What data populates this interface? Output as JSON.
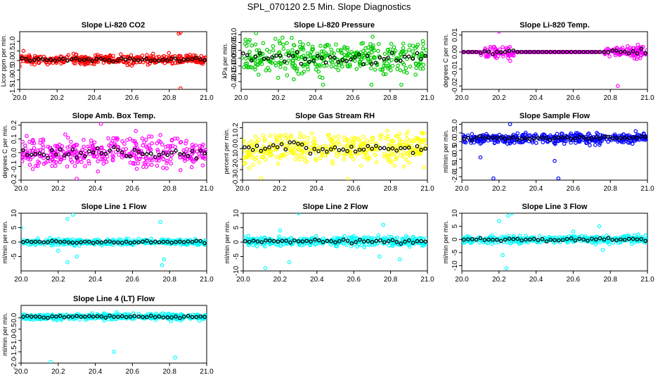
{
  "title": "SPL_070120  2.5 Min. Slope Diagnostics",
  "colors": {
    "red": "#ff0000",
    "green": "#00cc00",
    "magenta": "#ff00ff",
    "yellow": "#ffff00",
    "blue": "#0000ff",
    "cyan": "#00ffff",
    "black": "#000000"
  },
  "chart_data": [
    {
      "type": "scatter",
      "title": "Slope Li-820 CO2",
      "ylabel": "Licor ppm per min.",
      "xlim": [
        20.0,
        21.0
      ],
      "ylim": [
        -1.5,
        1.5
      ],
      "xticks": [
        "20.0",
        "20.2",
        "20.4",
        "20.6",
        "20.8",
        "21.0"
      ],
      "yticks": [
        "-1.5",
        "-1.0",
        "-0.5",
        "0.0",
        "0.5",
        "1.0"
      ],
      "color": "#ff0000",
      "band": [
        -0.3,
        0.4
      ],
      "outliers": [
        [
          20.85,
          1.4
        ],
        [
          20.86,
          1.45
        ],
        [
          20.86,
          -1.45
        ],
        [
          20.0,
          -0.3
        ],
        [
          20.02,
          0.5
        ]
      ]
    },
    {
      "type": "scatter",
      "title": "Slope Li-820 Pressure",
      "ylabel": "kPa per min.",
      "xlim": [
        20.0,
        21.0
      ],
      "ylim": [
        -0.25,
        0.12
      ],
      "xticks": [
        "20.0",
        "20.2",
        "20.4",
        "20.6",
        "20.8",
        "21.0"
      ],
      "yticks": [
        "-0.20",
        "-0.15",
        "-0.10",
        "-0.05",
        "0.00",
        "0.05",
        "0.10"
      ],
      "color": "#00cc00",
      "band": [
        -0.2,
        0.1
      ],
      "outliers": [
        [
          20.44,
          -0.22
        ],
        [
          20.7,
          -0.22
        ],
        [
          20.86,
          -0.22
        ],
        [
          20.08,
          0.11
        ]
      ]
    },
    {
      "type": "scatter",
      "title": "Slope Li-820 Temp.",
      "ylabel": "degrees C per min.",
      "xlim": [
        20.0,
        21.0
      ],
      "ylim": [
        -0.022,
        0.012
      ],
      "xticks": [
        "20.0",
        "20.2",
        "20.4",
        "20.6",
        "20.8",
        "21.0"
      ],
      "yticks": [
        "-0.02",
        "-0.01",
        "0.00",
        "0.01"
      ],
      "color": "#ff00ff",
      "band": [
        -0.005,
        0.005
      ],
      "activeRanges": [
        [
          20.1,
          20.28
        ],
        [
          20.77,
          21.0
        ]
      ],
      "outliers": [
        [
          20.2,
          0.012
        ],
        [
          20.84,
          -0.02
        ]
      ]
    },
    {
      "type": "scatter",
      "title": "Slope Amb. Box Temp.",
      "ylabel": "degrees C per min.",
      "xlim": [
        20.0,
        21.0
      ],
      "ylim": [
        -0.2,
        0.22
      ],
      "xticks": [
        "20.0",
        "20.2",
        "20.4",
        "20.6",
        "20.8",
        "21.0"
      ],
      "yticks": [
        "-0.2",
        "-0.1",
        "0.0",
        "0.1",
        "0.2"
      ],
      "color": "#ff00ff",
      "band": [
        -0.15,
        0.15
      ],
      "outliers": [
        [
          20.43,
          0.21
        ],
        [
          20.3,
          -0.19
        ]
      ]
    },
    {
      "type": "scatter",
      "title": "Slope Gas Stream RH",
      "ylabel": "percent per min.",
      "xlim": [
        20.0,
        21.0
      ],
      "ylim": [
        -0.3,
        0.25
      ],
      "xticks": [
        "20.0",
        "20.2",
        "20.4",
        "20.6",
        "20.8",
        "21.0"
      ],
      "yticks": [
        "-0.3",
        "-0.2",
        "-0.1",
        "0.0",
        "0.1",
        "0.2"
      ],
      "color": "#ffff00",
      "band": [
        -0.2,
        0.2
      ],
      "outliers": [
        [
          20.1,
          -0.28
        ],
        [
          20.57,
          -0.29
        ]
      ]
    },
    {
      "type": "scatter",
      "title": "Slope Sample Flow",
      "ylabel": "ml/min per min.",
      "xlim": [
        20.0,
        21.0
      ],
      "ylim": [
        -2.2,
        1.1
      ],
      "xticks": [
        "20.0",
        "20.2",
        "20.4",
        "20.6",
        "20.8",
        "21.0"
      ],
      "yticks": [
        "-2.0",
        "-1.5",
        "-1.0",
        "-0.5",
        "0.0",
        "0.5",
        "1.0"
      ],
      "color": "#0000ff",
      "band": [
        -0.2,
        0.6
      ],
      "outliers": [
        [
          20.17,
          -2.1
        ],
        [
          20.52,
          -2.1
        ],
        [
          20.26,
          1.0
        ],
        [
          20.5,
          -1.1
        ],
        [
          20.1,
          -0.9
        ]
      ]
    },
    {
      "type": "scatter",
      "title": "Slope Line 1 Flow",
      "ylabel": "ml/min per min.",
      "xlim": [
        20.0,
        21.0
      ],
      "ylim": [
        -10,
        10
      ],
      "xticks": [
        "20.0",
        "20.2",
        "20.4",
        "20.6",
        "20.8",
        "21.0"
      ],
      "yticks": [
        "-5",
        "0",
        "5",
        "10"
      ],
      "color": "#00ffff",
      "band": [
        -1.5,
        1.5
      ],
      "outliers": [
        [
          20.25,
          8
        ],
        [
          20.28,
          9.5
        ],
        [
          20.75,
          7
        ],
        [
          20.77,
          -6
        ],
        [
          20.76,
          -8
        ],
        [
          20.25,
          -7
        ],
        [
          20.3,
          -5
        ],
        [
          20.0,
          5
        ],
        [
          20.2,
          -3
        ]
      ]
    },
    {
      "type": "scatter",
      "title": "Slope Line 2 Flow",
      "ylabel": "ml/min per min.",
      "xlim": [
        20.0,
        21.0
      ],
      "ylim": [
        -10,
        10
      ],
      "xticks": [
        "20.0",
        "20.2",
        "20.4",
        "20.6",
        "20.8",
        "21.0"
      ],
      "yticks": [
        "-10",
        "-5",
        "0",
        "5",
        "10"
      ],
      "color": "#00ffff",
      "band": [
        -2,
        2.5
      ],
      "outliers": [
        [
          20.3,
          10
        ],
        [
          20.12,
          -9
        ],
        [
          20.25,
          -7
        ],
        [
          20.2,
          4
        ],
        [
          20.76,
          6
        ],
        [
          20.74,
          -5
        ],
        [
          20.85,
          -6
        ]
      ]
    },
    {
      "type": "scatter",
      "title": "Slope Line 3 Flow",
      "ylabel": "ml/min per min.",
      "xlim": [
        20.0,
        21.0
      ],
      "ylim": [
        -12,
        10
      ],
      "xticks": [
        "20.0",
        "20.2",
        "20.4",
        "20.6",
        "20.8",
        "21.0"
      ],
      "yticks": [
        "-10",
        "-5",
        "0",
        "5",
        "10"
      ],
      "color": "#00ffff",
      "band": [
        -2,
        2
      ],
      "outliers": [
        [
          20.25,
          9
        ],
        [
          20.27,
          10
        ],
        [
          20.24,
          -11
        ],
        [
          20.22,
          -6
        ],
        [
          20.74,
          5
        ],
        [
          20.76,
          -4
        ],
        [
          20.6,
          3
        ],
        [
          20.2,
          7
        ]
      ]
    },
    {
      "type": "scatter",
      "title": "Slope Line 4 (LT) Flow",
      "ylabel": "ml/min per min.",
      "xlim": [
        20.0,
        21.0
      ],
      "ylim": [
        -2.0,
        0.55
      ],
      "xticks": [
        "20.0",
        "20.2",
        "20.4",
        "20.6",
        "20.8",
        "21.0"
      ],
      "yticks": [
        "-2.0",
        "-1.5",
        "-1.0",
        "-0.5",
        "0.0"
      ],
      "color": "#00ffff",
      "band": [
        -0.15,
        0.25
      ],
      "outliers": [
        [
          20.16,
          -1.95
        ],
        [
          20.5,
          -1.5
        ],
        [
          20.83,
          -1.75
        ]
      ]
    }
  ]
}
